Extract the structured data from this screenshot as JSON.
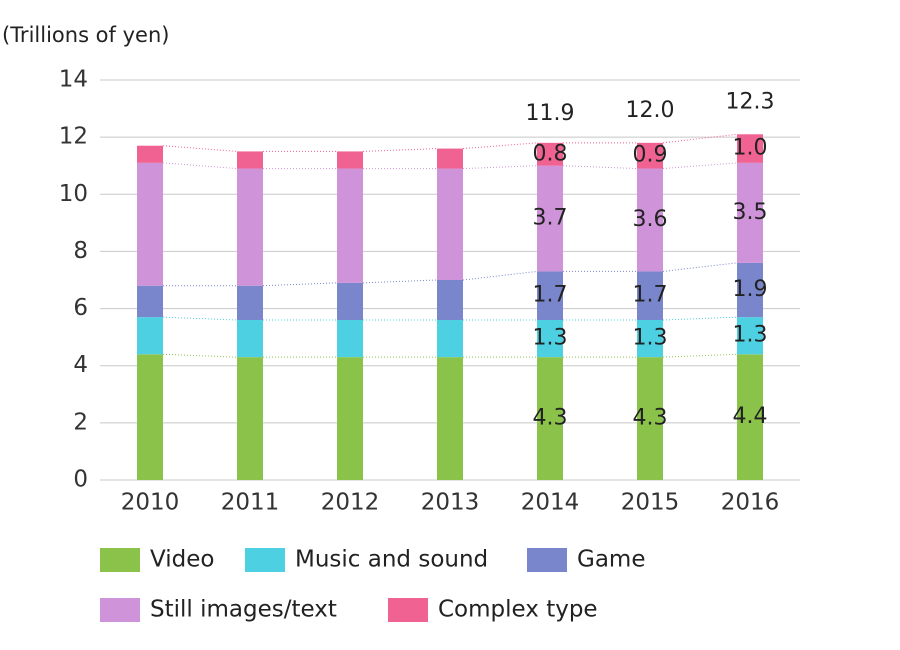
{
  "chart_data": {
    "type": "stacked_bar",
    "y_axis_label": "(Trillions of yen)",
    "categories": [
      "2010",
      "2011",
      "2012",
      "2013",
      "2014",
      "2015",
      "2016"
    ],
    "series": [
      {
        "name": "Video",
        "color": "#8bc34a",
        "values": [
          4.4,
          4.3,
          4.3,
          4.3,
          4.3,
          4.3,
          4.4
        ]
      },
      {
        "name": "Music and sound",
        "color": "#4dd0e1",
        "values": [
          1.3,
          1.3,
          1.3,
          1.3,
          1.3,
          1.3,
          1.3
        ]
      },
      {
        "name": "Game",
        "color": "#7986cb",
        "values": [
          1.1,
          1.2,
          1.3,
          1.4,
          1.7,
          1.7,
          1.9
        ]
      },
      {
        "name": "Still images/text",
        "color": "#ce93d8",
        "values": [
          4.3,
          4.1,
          4.0,
          3.9,
          3.7,
          3.6,
          3.5
        ]
      },
      {
        "name": "Complex type",
        "color": "#f06292",
        "values": [
          0.6,
          0.6,
          0.6,
          0.7,
          0.8,
          0.9,
          1.0
        ],
        "value_labels": [
          null,
          null,
          null,
          null,
          "0.8",
          "0.9",
          "1.0"
        ]
      }
    ],
    "totals": [
      null,
      null,
      null,
      null,
      11.9,
      12.0,
      12.3
    ],
    "total_labels": [
      null,
      null,
      null,
      null,
      "11.9",
      "12.0",
      "12.3"
    ],
    "labeled_from_index": 4,
    "ylim": [
      0,
      14
    ],
    "yticks": [
      0,
      2,
      4,
      6,
      8,
      10,
      12,
      14
    ],
    "grid": true
  }
}
